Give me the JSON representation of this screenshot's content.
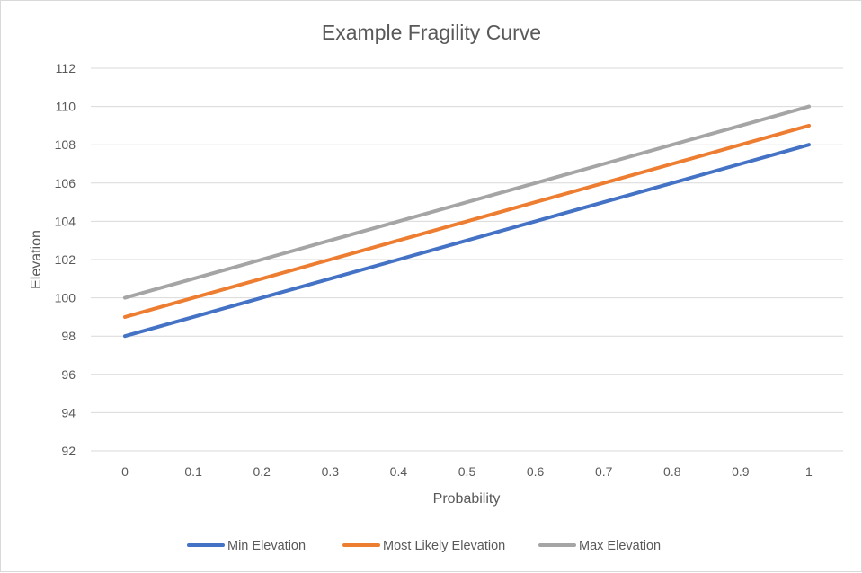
{
  "chart_data": {
    "type": "line",
    "title": "Example Fragility Curve",
    "xlabel": "Probability",
    "ylabel": "Elevation",
    "x": [
      0,
      0.1,
      0.2,
      0.3,
      0.4,
      0.5,
      0.6,
      0.7,
      0.8,
      0.9,
      1
    ],
    "x_tick_labels": [
      "0",
      "0.1",
      "0.2",
      "0.3",
      "0.4",
      "0.5",
      "0.6",
      "0.7",
      "0.8",
      "0.9",
      "1"
    ],
    "y_ticks": [
      92,
      94,
      96,
      98,
      100,
      102,
      104,
      106,
      108,
      110,
      112
    ],
    "ylim": [
      92,
      112
    ],
    "grid": true,
    "legend_position": "bottom",
    "series": [
      {
        "name": "Min Elevation",
        "color": "#4472c4",
        "values": [
          98,
          99,
          100,
          101,
          102,
          103,
          104,
          105,
          106,
          107,
          108
        ]
      },
      {
        "name": "Most Likely Elevation",
        "color": "#ed7d31",
        "values": [
          99,
          100,
          101,
          102,
          103,
          104,
          105,
          106,
          107,
          108,
          109
        ]
      },
      {
        "name": "Max Elevation",
        "color": "#a5a5a5",
        "values": [
          100,
          101,
          102,
          103,
          104,
          105,
          106,
          107,
          108,
          109,
          110
        ]
      }
    ]
  }
}
